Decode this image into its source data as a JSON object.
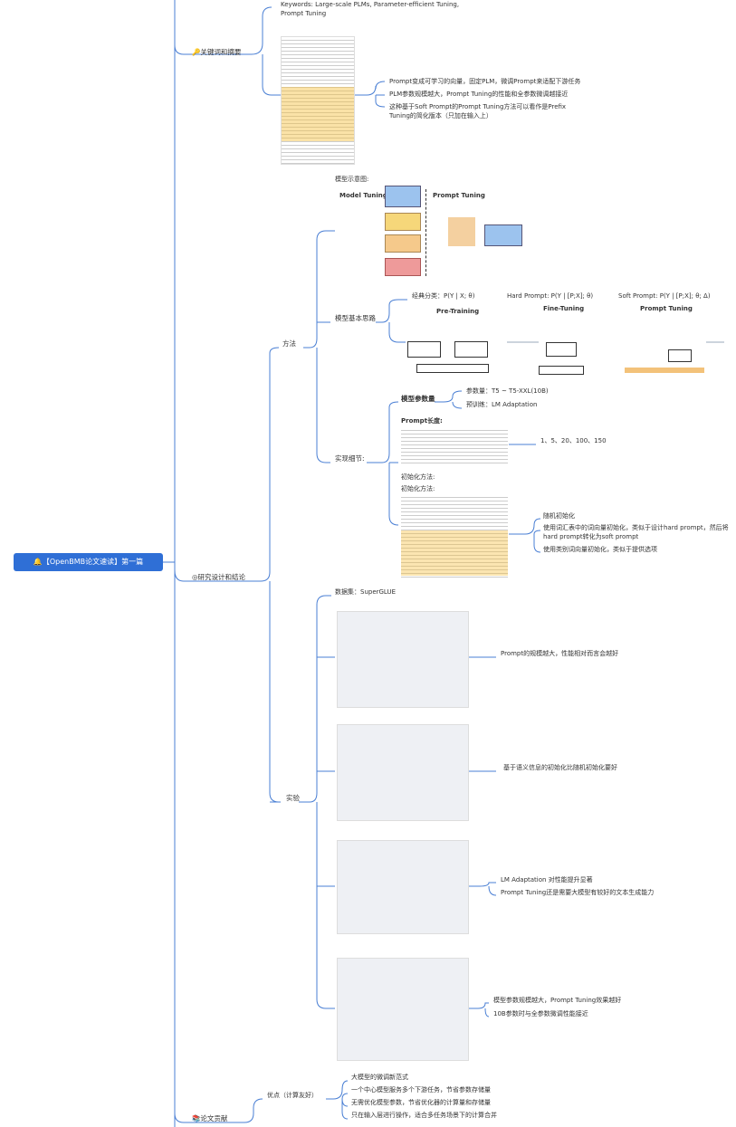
{
  "root": "【OpenBMB论文速读】第一篇",
  "keywords": {
    "label": "关键词和摘要",
    "keywords_text": "Keywords: Large-scale PLMs, Parameter-efficient Tuning, Prompt Tuning",
    "summary": [
      "Prompt变成可学习的向量，固定PLM，微调Prompt来适配下游任务",
      "PLM参数规模越大，Prompt Tuning的性能和全参数微调越接近",
      "这种基于Soft Prompt的Prompt Tuning方法可以看作是Prefix Tuning的简化版本（只加在输入上）"
    ]
  },
  "design": {
    "label": "研究设计和结论",
    "method": {
      "label": "方法",
      "diagram_label": "模型示意图:",
      "diagram_titles": [
        "Model Tuning",
        "Prompt Tuning"
      ],
      "idea": {
        "label": "模型基本思路",
        "formulas": [
          "经典分类：P(Y | X; θ)",
          "Hard Prompt: P(Y | [P;X]; θ)",
          "Soft Prompt: P(Y | [P;X]; θ; Δ)"
        ],
        "stages": [
          "Pre-Training",
          "Fine-Tuning",
          "Prompt Tuning"
        ]
      },
      "details": {
        "label": "实现细节:",
        "params": {
          "label": "模型参数量",
          "items": [
            "参数量：T5 ~ T5-XXL(10B)",
            "预训练：LM Adaptation"
          ]
        },
        "prompt_length": {
          "label": "Prompt长度:",
          "value": "1、5、20、100、150"
        },
        "init": {
          "labels": [
            "初始化方法:",
            "初始化方法:"
          ],
          "items": [
            "随机初始化",
            "使用词汇表中的词向量初始化，类似于设计hard prompt，然后将hard prompt转化为soft prompt",
            "使用类别词向量初始化，类似于提供选项"
          ]
        }
      }
    },
    "dataset": "数据集：SuperGLUE",
    "experiment": {
      "label": "实验",
      "findings": [
        [
          "Prompt的规模越大，性能相对而言会越好"
        ],
        [
          "基于语义信息的初始化比随机初始化要好"
        ],
        [
          "LM Adaptation 对性能提升显著",
          "Prompt Tuning还是需要大模型有较好的文本生成能力"
        ],
        [
          "模型参数规模越大，Prompt Tuning效果越好",
          "10B参数时与全参数微调性能接近"
        ]
      ]
    }
  },
  "contribution": {
    "label": "论文贡献",
    "pros": {
      "label": "优点（计算友好）",
      "items": [
        "大模型的微调新范式",
        "一个中心模型服务多个下游任务，节省参数存储量",
        "无需优化模型参数，节省优化器的计算量和存储量",
        "只在输入层进行操作，适合多任务场景下的计算合并"
      ]
    }
  }
}
